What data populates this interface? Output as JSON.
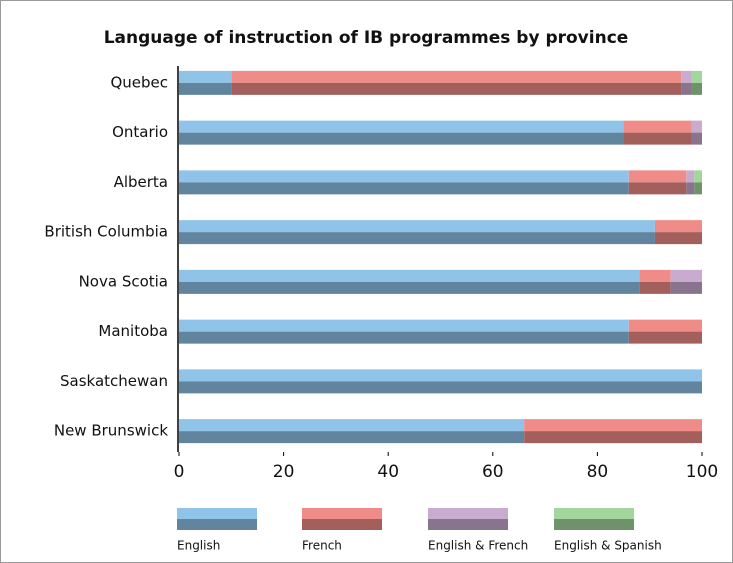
{
  "chart_data": {
    "type": "stacked-bar-horizontal",
    "title": "Language of instruction of IB programmes by province",
    "categories": [
      "Quebec",
      "Ontario",
      "Alberta",
      "British Columbia",
      "Nova Scotia",
      "Manitoba",
      "Saskatchewan",
      "New Brunswick"
    ],
    "series": [
      {
        "name": "English",
        "color": "#8fc4e8",
        "values": [
          10,
          85,
          86,
          91,
          88,
          86,
          100,
          66
        ]
      },
      {
        "name": "French",
        "color": "#ef8c88",
        "values": [
          86,
          13,
          11,
          9,
          6,
          14,
          0,
          34
        ]
      },
      {
        "name": "English & French",
        "color": "#c9abd0",
        "values": [
          2,
          2,
          1.5,
          0,
          6,
          0,
          0,
          0
        ]
      },
      {
        "name": "English & Spanish",
        "color": "#a3d69d",
        "values": [
          2,
          0,
          1.5,
          0,
          0,
          0,
          0,
          0
        ]
      }
    ],
    "xlim": [
      0,
      100
    ],
    "xticks": [
      0,
      20,
      40,
      60,
      80,
      100
    ],
    "legend": "bottom"
  }
}
